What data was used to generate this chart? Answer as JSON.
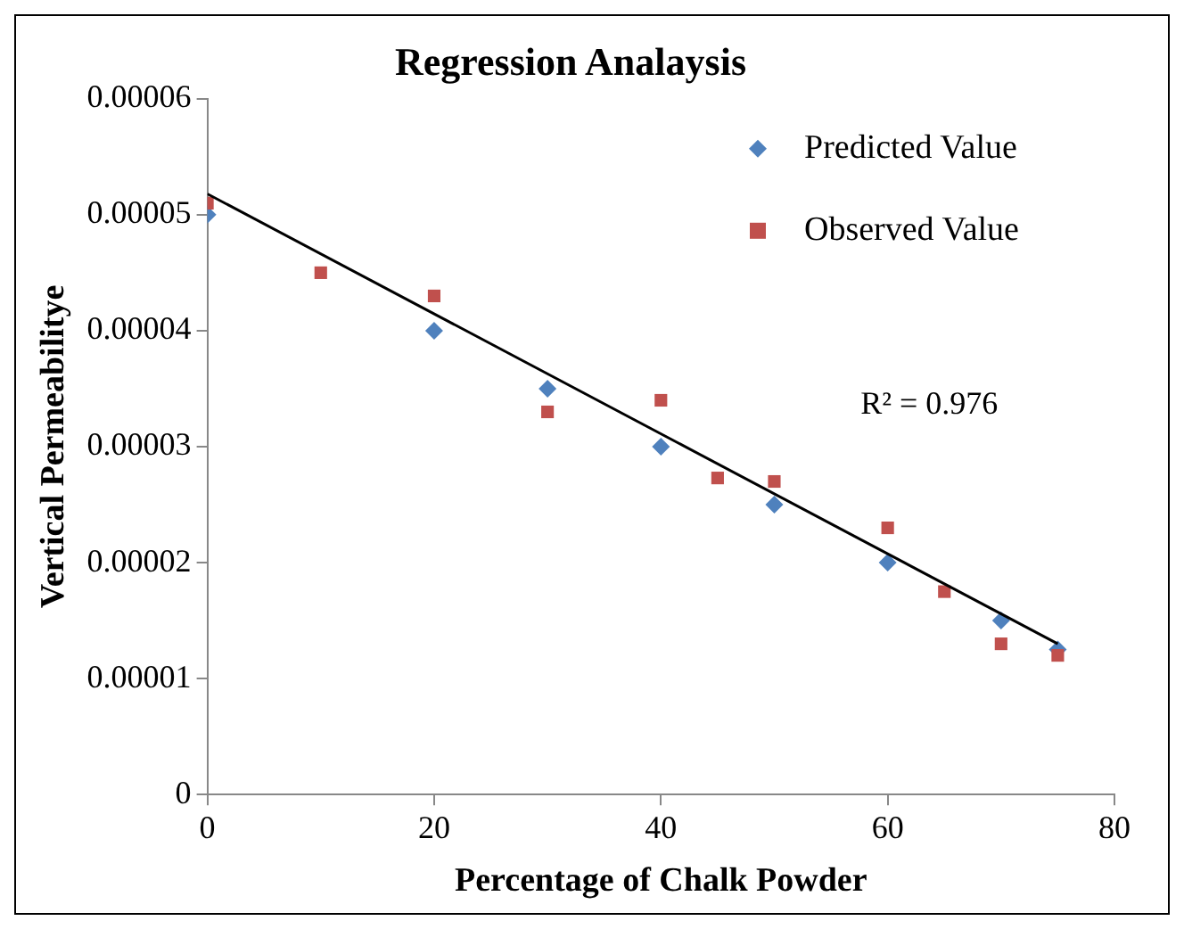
{
  "chart_data": {
    "type": "scatter",
    "title": "Regression Analaysis",
    "xlabel": "Percentage of Chalk Powder",
    "ylabel": "Vertical Permeabilitye",
    "xlim": [
      0,
      80
    ],
    "xticks": [
      0,
      20,
      40,
      60,
      80
    ],
    "ylim": [
      0,
      6e-05
    ],
    "yticks": [
      0,
      {
        "value": 1e-05,
        "label": "0.00001"
      },
      {
        "value": 2e-05,
        "label": "0.00002"
      },
      {
        "value": 3e-05,
        "label": "0.00003"
      },
      {
        "value": 4e-05,
        "label": "0.00004"
      },
      {
        "value": 5e-05,
        "label": "0.00005"
      },
      {
        "value": 6e-05,
        "label": "0.00006"
      }
    ],
    "grid": false,
    "legend": "top right",
    "series": [
      {
        "name": "Predicted Value",
        "color": "#4f81bd",
        "marker": "diamond",
        "x": [
          0,
          20,
          30,
          40,
          50,
          60,
          70,
          75
        ],
        "values": [
          5e-05,
          4e-05,
          3.5e-05,
          3e-05,
          2.5e-05,
          2e-05,
          1.5e-05,
          1.25e-05
        ]
      },
      {
        "name": "Observed Value",
        "color": "#c0504d",
        "marker": "square",
        "x": [
          0,
          10,
          20,
          30,
          40,
          45,
          50,
          60,
          65,
          70,
          75
        ],
        "values": [
          5.1e-05,
          4.5e-05,
          4.3e-05,
          3.3e-05,
          3.4e-05,
          2.73e-05,
          2.7e-05,
          2.3e-05,
          1.75e-05,
          1.3e-05,
          1.2e-05
        ]
      },
      {
        "type": "line",
        "color": "#000000",
        "marker": "none",
        "x": [
          0,
          75
        ],
        "values": [
          5.18e-05,
          1.3e-05
        ]
      }
    ],
    "annotations": [
      "R² = 0.976"
    ]
  }
}
